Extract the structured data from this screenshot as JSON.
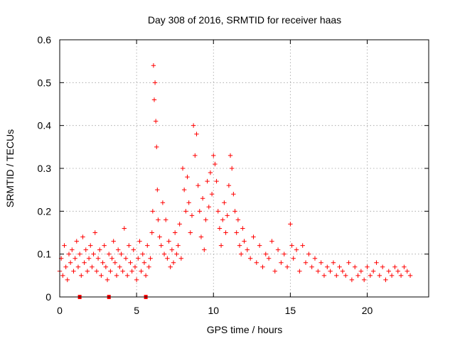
{
  "chart_data": {
    "type": "scatter",
    "title": "Day 308 of 2016, SRMTID for receiver haas",
    "xlabel": "GPS time / hours",
    "ylabel": "SRMTID / TECUs",
    "xlim": [
      0,
      24
    ],
    "ylim": [
      0,
      0.6
    ],
    "xticks": [
      0,
      5,
      10,
      15,
      20
    ],
    "yticks": [
      0,
      0.1,
      0.2,
      0.3,
      0.4,
      0.5,
      0.6
    ],
    "xtick_labels": [
      "0",
      "5",
      "10",
      "15",
      "20"
    ],
    "ytick_labels": [
      "0",
      "0.1",
      "0.2",
      "0.3",
      "0.4",
      "0.5",
      "0.6"
    ],
    "grid": true,
    "marker": "+",
    "color": "#ff0000",
    "series": [
      {
        "name": "SRMTID",
        "x": [
          0.0,
          0.1,
          0.2,
          0.3,
          0.4,
          0.5,
          0.6,
          0.7,
          0.8,
          0.9,
          1.0,
          1.1,
          1.2,
          1.3,
          1.4,
          1.5,
          1.6,
          1.7,
          1.8,
          1.9,
          2.0,
          2.1,
          2.2,
          2.3,
          2.4,
          2.5,
          2.6,
          2.7,
          2.8,
          2.9,
          3.0,
          3.1,
          3.2,
          3.3,
          3.4,
          3.5,
          3.6,
          3.7,
          3.8,
          3.9,
          4.0,
          4.1,
          4.2,
          4.3,
          4.4,
          4.5,
          4.6,
          4.7,
          4.8,
          4.9,
          5.0,
          5.1,
          5.2,
          5.3,
          5.4,
          5.5,
          5.6,
          5.7,
          5.8,
          5.9,
          6.0,
          6.05,
          6.1,
          6.15,
          6.2,
          6.25,
          6.3,
          6.35,
          6.4,
          6.5,
          6.6,
          6.7,
          6.8,
          6.9,
          7.0,
          7.1,
          7.2,
          7.3,
          7.4,
          7.5,
          7.6,
          7.7,
          7.8,
          7.9,
          8.0,
          8.1,
          8.2,
          8.3,
          8.4,
          8.5,
          8.6,
          8.7,
          8.8,
          8.9,
          9.0,
          9.1,
          9.2,
          9.3,
          9.4,
          9.5,
          9.6,
          9.7,
          9.8,
          9.9,
          10.0,
          10.1,
          10.2,
          10.3,
          10.4,
          10.5,
          10.6,
          10.7,
          10.8,
          10.9,
          11.0,
          11.1,
          11.2,
          11.3,
          11.4,
          11.5,
          11.6,
          11.7,
          11.8,
          11.9,
          12.0,
          12.2,
          12.4,
          12.6,
          12.8,
          13.0,
          13.2,
          13.4,
          13.6,
          13.8,
          14.0,
          14.2,
          14.4,
          14.6,
          14.8,
          15.0,
          15.1,
          15.2,
          15.4,
          15.6,
          15.8,
          16.0,
          16.2,
          16.4,
          16.6,
          16.8,
          17.0,
          17.2,
          17.4,
          17.6,
          17.8,
          18.0,
          18.2,
          18.4,
          18.6,
          18.8,
          19.0,
          19.2,
          19.4,
          19.6,
          19.8,
          20.0,
          20.2,
          20.4,
          20.6,
          20.8,
          21.0,
          21.2,
          21.4,
          21.6,
          21.8,
          22.0,
          22.2,
          22.4,
          22.6,
          22.8
        ],
        "y": [
          0.06,
          0.09,
          0.05,
          0.12,
          0.07,
          0.04,
          0.1,
          0.08,
          0.11,
          0.06,
          0.09,
          0.13,
          0.07,
          0.1,
          0.05,
          0.14,
          0.08,
          0.11,
          0.06,
          0.09,
          0.12,
          0.07,
          0.1,
          0.15,
          0.06,
          0.09,
          0.11,
          0.05,
          0.08,
          0.12,
          0.07,
          0.04,
          0.1,
          0.06,
          0.09,
          0.13,
          0.08,
          0.05,
          0.11,
          0.07,
          0.1,
          0.06,
          0.16,
          0.09,
          0.05,
          0.12,
          0.08,
          0.06,
          0.11,
          0.07,
          0.04,
          0.09,
          0.13,
          0.06,
          0.1,
          0.08,
          0.05,
          0.12,
          0.07,
          0.09,
          0.15,
          0.2,
          0.54,
          0.46,
          0.5,
          0.41,
          0.35,
          0.25,
          0.18,
          0.14,
          0.12,
          0.22,
          0.1,
          0.18,
          0.09,
          0.13,
          0.07,
          0.11,
          0.08,
          0.15,
          0.1,
          0.12,
          0.17,
          0.09,
          0.3,
          0.25,
          0.2,
          0.28,
          0.22,
          0.15,
          0.19,
          0.4,
          0.33,
          0.38,
          0.26,
          0.2,
          0.14,
          0.23,
          0.11,
          0.18,
          0.27,
          0.21,
          0.29,
          0.24,
          0.33,
          0.31,
          0.27,
          0.2,
          0.16,
          0.12,
          0.18,
          0.22,
          0.15,
          0.19,
          0.26,
          0.33,
          0.3,
          0.24,
          0.2,
          0.15,
          0.18,
          0.12,
          0.1,
          0.16,
          0.13,
          0.11,
          0.09,
          0.14,
          0.08,
          0.12,
          0.07,
          0.1,
          0.09,
          0.13,
          0.06,
          0.11,
          0.08,
          0.1,
          0.07,
          0.17,
          0.12,
          0.09,
          0.11,
          0.06,
          0.12,
          0.08,
          0.1,
          0.07,
          0.09,
          0.06,
          0.08,
          0.05,
          0.07,
          0.06,
          0.08,
          0.05,
          0.07,
          0.06,
          0.05,
          0.08,
          0.04,
          0.07,
          0.05,
          0.06,
          0.04,
          0.07,
          0.05,
          0.06,
          0.08,
          0.05,
          0.07,
          0.04,
          0.06,
          0.05,
          0.07,
          0.06,
          0.05,
          0.07,
          0.06,
          0.05
        ]
      }
    ],
    "baseline_markers_x": [
      1.3,
      3.2,
      5.6
    ]
  }
}
